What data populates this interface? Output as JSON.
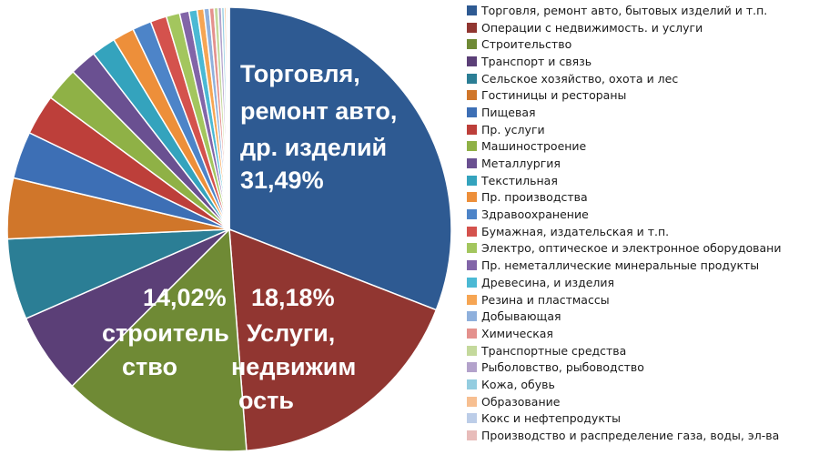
{
  "chart_data": {
    "type": "pie",
    "slices": [
      {
        "name": "Торговля, ремонт авто, бытовых изделий и т.п.",
        "value": 31.49,
        "color": "#2e5a92"
      },
      {
        "name": "Операции с недвижимость.  и услуги",
        "value": 18.18,
        "color": "#913631"
      },
      {
        "name": "Строительство",
        "value": 14.02,
        "color": "#6f8a35"
      },
      {
        "name": "Транспорт и связь",
        "value": 6.0,
        "color": "#5b3f77"
      },
      {
        "name": "Сельское хозяйство, охота и лес",
        "value": 6.0,
        "color": "#2b7e95"
      },
      {
        "name": "Гостиницы и рестораны",
        "value": 4.5,
        "color": "#d0762a"
      },
      {
        "name": "Пищевая",
        "value": 3.5,
        "color": "#3d6fb5"
      },
      {
        "name": "Пр. услуги",
        "value": 3.0,
        "color": "#bd3f3a"
      },
      {
        "name": "Машиностроение",
        "value": 2.5,
        "color": "#8fb146"
      },
      {
        "name": "Металлургия",
        "value": 2.0,
        "color": "#6a5091"
      },
      {
        "name": "Текстильная",
        "value": 1.8,
        "color": "#34a3bd"
      },
      {
        "name": "Пр. производства",
        "value": 1.6,
        "color": "#ed8f3a"
      },
      {
        "name": "Здравоохранение",
        "value": 1.4,
        "color": "#4d84c8"
      },
      {
        "name": "Бумажная, издательская и т.п.",
        "value": 1.2,
        "color": "#d4524d"
      },
      {
        "name": "Электро, оптическое и электронное оборудовани",
        "value": 1.0,
        "color": "#a3c65e"
      },
      {
        "name": "Пр. неметаллические  минеральные продукты",
        "value": 0.7,
        "color": "#8265a8"
      },
      {
        "name": "Древесина,  и изделия",
        "value": 0.6,
        "color": "#4bb9d4"
      },
      {
        "name": "Резина и пластмассы",
        "value": 0.5,
        "color": "#f6a553"
      },
      {
        "name": "Добывающая",
        "value": 0.4,
        "color": "#8fb0dc"
      },
      {
        "name": "Химическая",
        "value": 0.35,
        "color": "#e4918d"
      },
      {
        "name": "Транспортные средства",
        "value": 0.3,
        "color": "#c4d99c"
      },
      {
        "name": "Рыболовство, рыбоводство",
        "value": 0.25,
        "color": "#b3a2cb"
      },
      {
        "name": "Кожа, обувь",
        "value": 0.2,
        "color": "#94cde0"
      },
      {
        "name": "Образование",
        "value": 0.15,
        "color": "#f7bf91"
      },
      {
        "name": "Кокс и нефтепродукты",
        "value": 0.12,
        "color": "#bccde8"
      },
      {
        "name": "Производство и распределение  газа, воды, эл-ва",
        "value": 0.1,
        "color": "#e8bcba"
      }
    ],
    "labels": {
      "trade": [
        "Торговля,",
        "ремонт авто,",
        "др. изделий",
        "31,49%"
      ],
      "services": [
        "18,18%",
        "Услуги,",
        "недвижим",
        "ость"
      ],
      "construction": [
        "14,02%",
        "строитель",
        "ство"
      ]
    },
    "legend_position": "right"
  }
}
